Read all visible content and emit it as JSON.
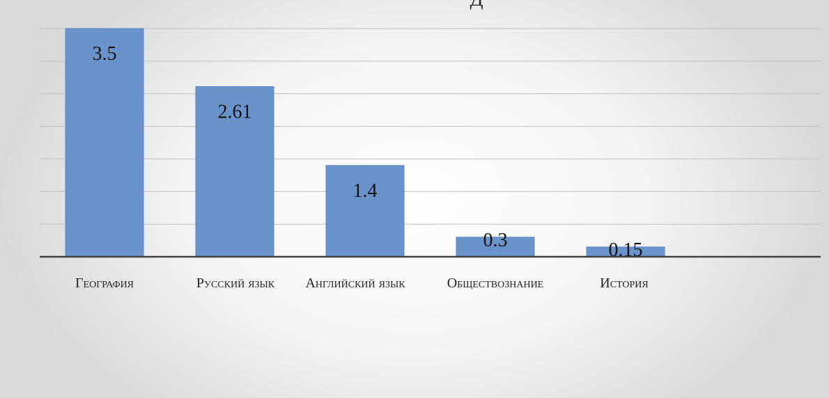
{
  "chart_data": {
    "type": "bar",
    "title": "Д",
    "xlabel": "",
    "ylabel": "",
    "categories": [
      "География",
      "Русский язык",
      "Английский язык",
      "Обществознание",
      "История"
    ],
    "values": [
      3.5,
      2.61,
      1.4,
      0.3,
      0.15
    ],
    "data_labels": [
      "3.5",
      "2.61",
      "1.4",
      "0.3",
      "0.15"
    ],
    "ylim": [
      0,
      3.5
    ],
    "grid": true,
    "legend": "none",
    "colors": {
      "bar": "#6a93cc",
      "gridline": "#bfbfbf",
      "axis": "#404040"
    }
  }
}
